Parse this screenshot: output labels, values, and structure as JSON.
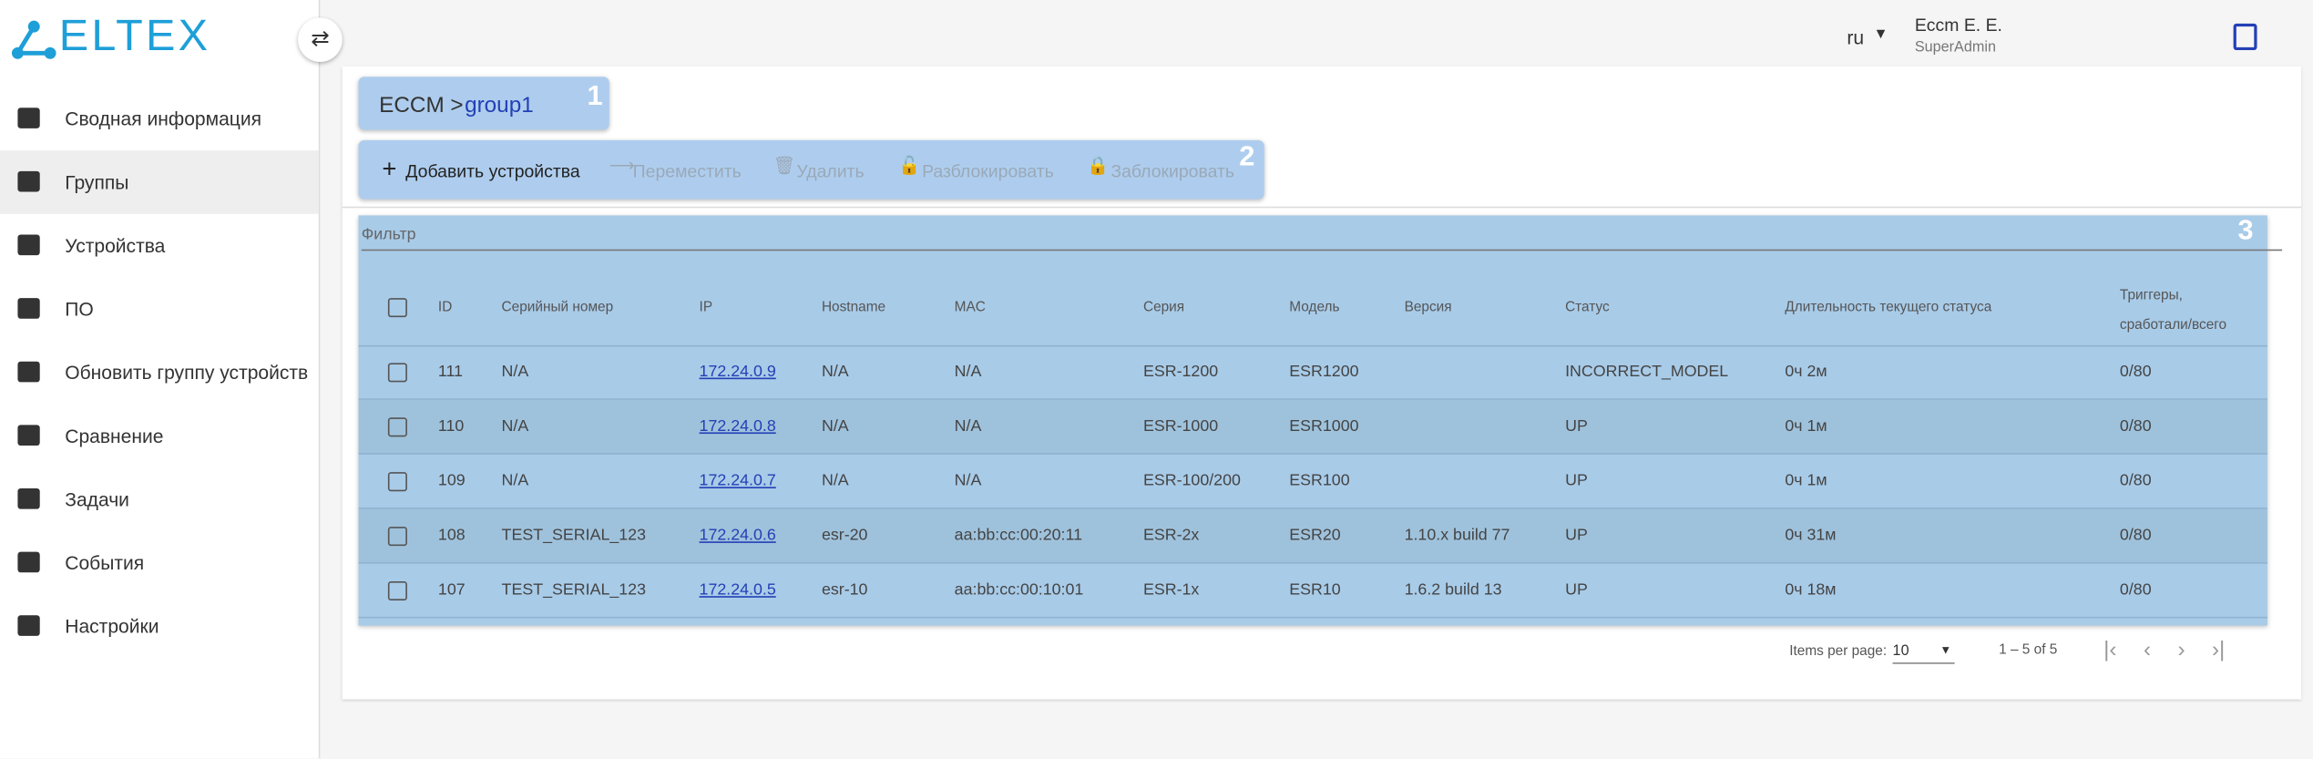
{
  "logo": "ELTEX",
  "nav": [
    "Сводная информация",
    "Группы",
    "Устройства",
    "ПО",
    "Обновить группу устройств",
    "Сравнение",
    "Задачи",
    "События",
    "Настройки"
  ],
  "header": {
    "lang": "ru",
    "user": "Eccm E. E.",
    "role": "SuperAdmin"
  },
  "breadcrumb": {
    "root": "ECCM >",
    "current": "group1",
    "badge": "1"
  },
  "toolbar": {
    "buttons": [
      "Добавить устройства",
      "Переместить",
      "Удалить",
      "Разблокировать",
      "Заблокировать"
    ],
    "badge": "2"
  },
  "table": {
    "filter": "Фильтр",
    "badge": "3",
    "columns": [
      "ID",
      "Серийный номер",
      "IP",
      "Hostname",
      "MAC",
      "Серия",
      "Модель",
      "Версия",
      "Статус",
      "Длительность текущего статуса",
      "Триггеры, сработали/всего"
    ],
    "rows": [
      [
        111,
        "N/A",
        "172.24.0.9",
        "N/A",
        "N/A",
        "ESR-1200",
        "ESR1200",
        null,
        "INCORRECT_MODEL",
        "0ч 2м",
        "0/80"
      ],
      [
        110,
        "N/A",
        "172.24.0.8",
        "N/A",
        "N/A",
        "ESR-1000",
        "ESR1000",
        null,
        "UP",
        "0ч 1м",
        "0/80"
      ],
      [
        109,
        "N/A",
        "172.24.0.7",
        "N/A",
        "N/A",
        "ESR-100/200",
        "ESR100",
        null,
        "UP",
        "0ч 1м",
        "0/80"
      ],
      [
        108,
        "TEST_SERIAL_123",
        "172.24.0.6",
        "esr-20",
        "aa:bb:cc:00:20:11",
        "ESR-2x",
        "ESR20",
        "1.10.x build 77",
        "UP",
        "0ч 31м",
        "0/80"
      ],
      [
        107,
        "TEST_SERIAL_123",
        "172.24.0.5",
        "esr-10",
        "aa:bb:cc:00:10:01",
        "ESR-1x",
        "ESR10",
        "1.6.2 build 13",
        "UP",
        "0ч 18м",
        "0/80"
      ]
    ]
  },
  "pagination": {
    "label": "Items per page:",
    "size": "10",
    "range": "1 – 5 of 5"
  }
}
